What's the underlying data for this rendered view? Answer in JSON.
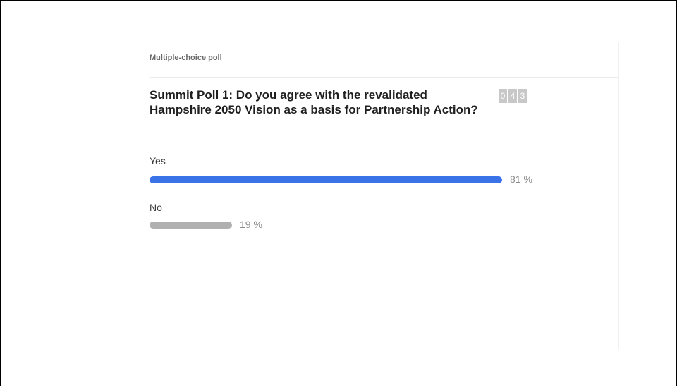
{
  "poll": {
    "type_label": "Multiple-choice poll",
    "question": "Summit Poll 1: Do you agree with the revalidated Hampshire 2050 Vision as a basis for Partnership Action?",
    "counter_digits": [
      "0",
      "4",
      "3"
    ],
    "options": [
      {
        "label": "Yes",
        "percent": 81,
        "percent_label": "81 %",
        "color": "#3a73e8"
      },
      {
        "label": "No",
        "percent": 19,
        "percent_label": "19 %",
        "color": "#b0b0b0"
      }
    ]
  }
}
